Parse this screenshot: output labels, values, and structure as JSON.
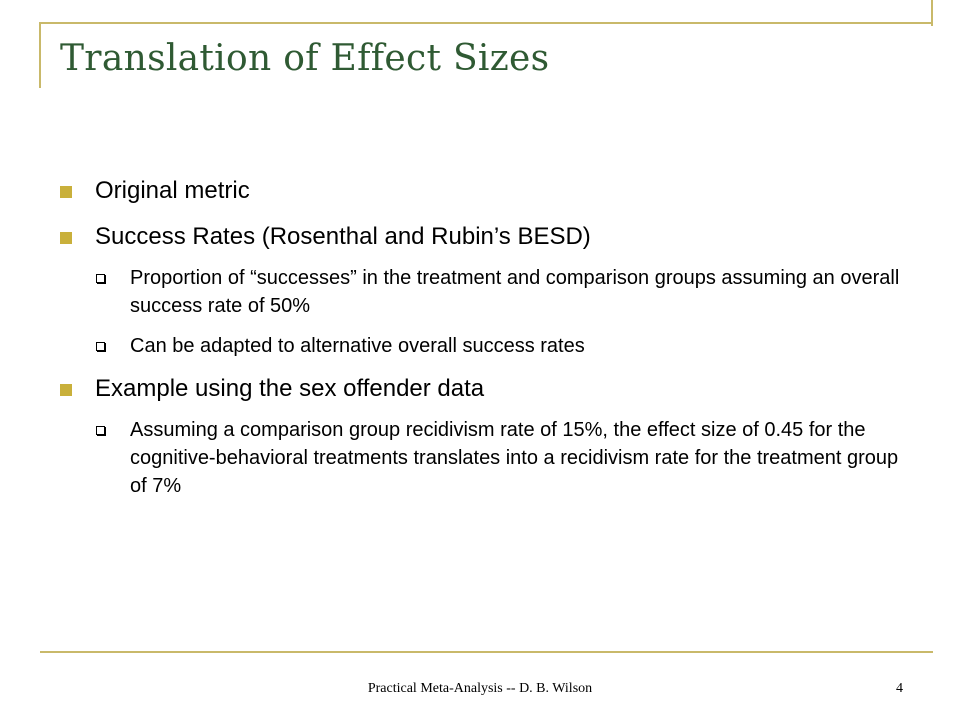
{
  "slide": {
    "title": "Translation of Effect Sizes",
    "bullets": [
      {
        "text": "Original metric",
        "sub": []
      },
      {
        "text": "Success Rates (Rosenthal and Rubin’s BESD)",
        "sub": [
          "Proportion of “successes” in the treatment and comparison groups assuming an overall success rate of 50%",
          "Can be adapted to alternative overall success rates"
        ]
      },
      {
        "text": "Example using the sex offender data",
        "sub": [
          "Assuming a comparison group recidivism rate of 15%, the effect size of 0.45 for the cognitive-behavioral treatments translates into a recidivism rate for the treatment group of 7%"
        ]
      }
    ],
    "footer": "Practical Meta-Analysis -- D. B. Wilson",
    "page_number": "4"
  },
  "colors": {
    "title": "#2f5a33",
    "frame": "#c9b96a",
    "bullet_l1": "#c9b03b",
    "bullet_l2": "#000000"
  }
}
